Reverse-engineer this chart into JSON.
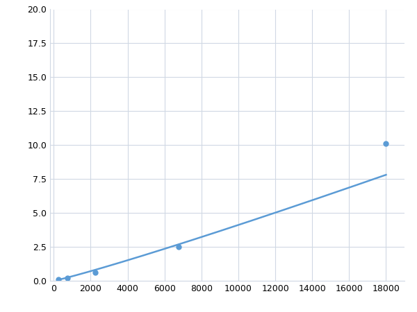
{
  "x_data": [
    250,
    750,
    2250,
    6750,
    18000
  ],
  "y_data": [
    0.1,
    0.2,
    0.6,
    2.5,
    10.1
  ],
  "line_color": "#5b9bd5",
  "marker_color": "#5b9bd5",
  "marker_size": 5,
  "marker_style": "o",
  "xlim": [
    -200,
    19000
  ],
  "ylim": [
    0,
    20.0
  ],
  "xticks": [
    0,
    2000,
    4000,
    6000,
    8000,
    10000,
    12000,
    14000,
    16000,
    18000
  ],
  "yticks": [
    0.0,
    2.5,
    5.0,
    7.5,
    10.0,
    12.5,
    15.0,
    17.5,
    20.0
  ],
  "grid_color": "#d0d8e4",
  "background_color": "#ffffff",
  "tick_fontsize": 9,
  "line_width": 1.8
}
